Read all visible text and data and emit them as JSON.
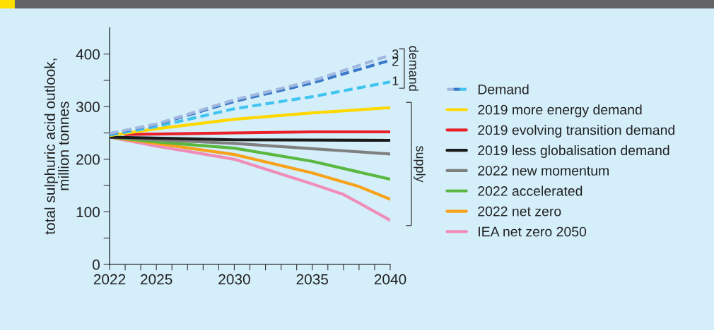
{
  "chart_data": {
    "type": "line",
    "ylabel": "total sulphuric acid outlook,\nmillion tonnes",
    "xlim": [
      2022,
      2040
    ],
    "ylim": [
      0,
      450
    ],
    "xticks": [
      2022,
      {
        "value": 2023,
        "label": null
      },
      {
        "value": 2024,
        "label": null
      },
      2025,
      {
        "value": 2026,
        "label": null
      },
      {
        "value": 2027,
        "label": null
      },
      {
        "value": 2028,
        "label": null
      },
      {
        "value": 2029,
        "label": null
      },
      2030,
      {
        "value": 2031,
        "label": null
      },
      {
        "value": 2032,
        "label": null
      },
      {
        "value": 2033,
        "label": null
      },
      {
        "value": 2034,
        "label": null
      },
      2035,
      {
        "value": 2036,
        "label": null
      },
      {
        "value": 2037,
        "label": null
      },
      {
        "value": 2038,
        "label": null
      },
      {
        "value": 2039,
        "label": null
      },
      2040
    ],
    "yticks": [
      0,
      {
        "value": 50,
        "label": null
      },
      100,
      {
        "value": 150,
        "label": null
      },
      200,
      {
        "value": 250,
        "label": null
      },
      300,
      {
        "value": 350,
        "label": null
      },
      400
    ],
    "grid": false,
    "legend": "right",
    "marker": "none",
    "annotations": [
      "Demand",
      "demand",
      "supply"
    ],
    "series": [
      {
        "name": "3",
        "color": "#a0b8e0",
        "line_style": "dashed",
        "x": [
          2022,
          2025,
          2030,
          2035,
          2040
        ],
        "values": [
          249,
          267,
          313,
          349,
          398
        ]
      },
      {
        "name": "2",
        "color": "#3a78c8",
        "line_style": "dashed",
        "x": [
          2022,
          2025,
          2030,
          2035,
          2040
        ],
        "values": [
          248,
          266,
          310,
          345,
          388
        ]
      },
      {
        "name": "1",
        "color": "#40c4f0",
        "line_style": "dashed",
        "x": [
          2022,
          2025,
          2030,
          2035,
          2040
        ],
        "values": [
          246,
          262,
          296,
          319,
          347
        ]
      },
      {
        "name": "2019 more energy demand",
        "color": "#ffd800",
        "line_style": "solid",
        "x": [
          2022,
          2025,
          2030,
          2035,
          2040
        ],
        "values": [
          245,
          258,
          276,
          288,
          298
        ]
      },
      {
        "name": "2019 evolving transition demand",
        "color": "#e8202a",
        "line_style": "solid",
        "x": [
          2023,
          2030,
          2035,
          2040
        ],
        "values": [
          247,
          250,
          252,
          252
        ]
      },
      {
        "name": "2019 less globalisation demand",
        "color": "#1a1a1a",
        "line_style": "solid",
        "x": [
          2022,
          2030,
          2040
        ],
        "values": [
          242,
          237,
          236
        ]
      },
      {
        "name": "2022 new momentum",
        "color": "#808080",
        "line_style": "solid",
        "x": [
          2022,
          2025,
          2030,
          2035,
          2040
        ],
        "values": [
          242,
          237,
          230,
          220,
          210
        ]
      },
      {
        "name": "2022 accelerated",
        "color": "#5ab840",
        "line_style": "solid",
        "x": [
          2022,
          2025,
          2030,
          2035,
          2040
        ],
        "values": [
          242,
          233,
          221,
          196,
          162
        ]
      },
      {
        "name": "2022 net zero",
        "color": "#f7a21b",
        "line_style": "solid",
        "x": [
          2022,
          2025,
          2030,
          2035,
          2038,
          2040
        ],
        "values": [
          242,
          230,
          209,
          174,
          148,
          124
        ]
      },
      {
        "name": "IEA net zero 2050",
        "color": "#f08cb8",
        "line_style": "solid",
        "x": [
          2022,
          2025,
          2030,
          2035,
          2037,
          2038,
          2040
        ],
        "values": [
          242,
          225,
          200,
          153,
          133,
          117,
          84
        ]
      }
    ]
  }
}
